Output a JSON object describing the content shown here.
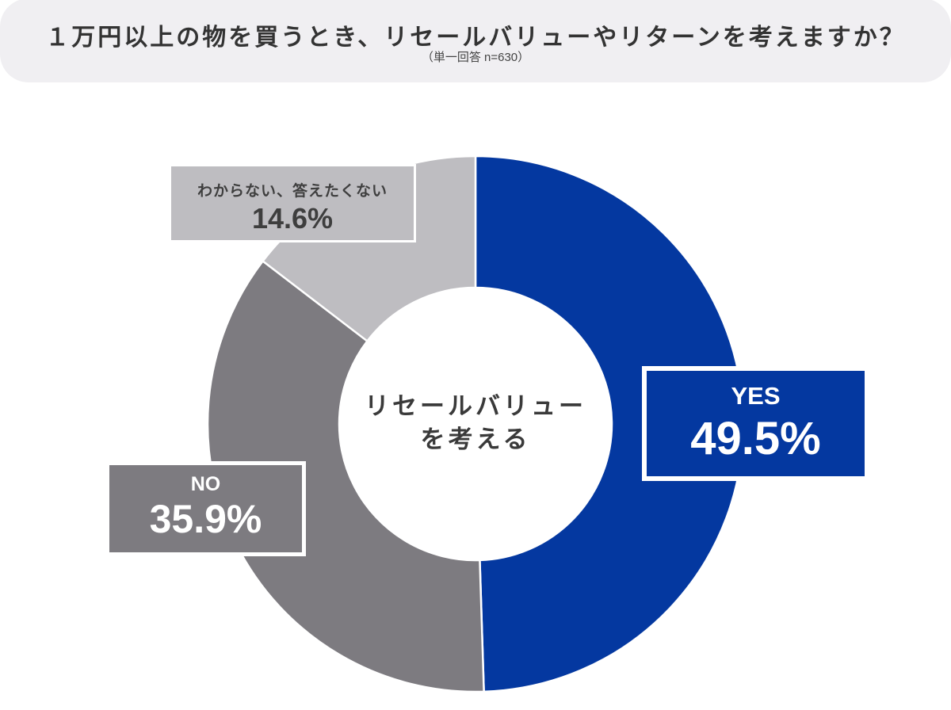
{
  "header": {
    "title": "１万円以上の物を買うとき、リセールバリューやリターンを考えますか？",
    "subtitle": "（単一回答 n=630）"
  },
  "center": {
    "line1": "リセールバリュー",
    "line2": "を考える"
  },
  "labels": {
    "yes": {
      "name": "YES",
      "value": "49.5%"
    },
    "no": {
      "name": "NO",
      "value": "35.9%"
    },
    "unknown": {
      "name": "わからない、答えたくない",
      "value": "14.6%"
    }
  },
  "colors": {
    "yes": "#0438a0",
    "no": "#7d7b80",
    "unknown": "#bebdc1",
    "title_bg": "#f0eff2"
  },
  "chart_data": {
    "type": "pie",
    "variant": "donut",
    "title": "１万円以上の物を買うとき、リセールバリューやリターンを考えますか？",
    "subtitle": "（単一回答 n=630）",
    "center_label": "リセールバリューを考える",
    "categories": [
      "YES",
      "NO",
      "わからない、答えたくない"
    ],
    "values": [
      49.5,
      35.9,
      14.6
    ],
    "unit": "%",
    "n": 630,
    "colors": [
      "#0438a0",
      "#7d7b80",
      "#bebdc1"
    ],
    "start_angle": "12 o'clock, clockwise",
    "legend": "none (direct labels)"
  }
}
